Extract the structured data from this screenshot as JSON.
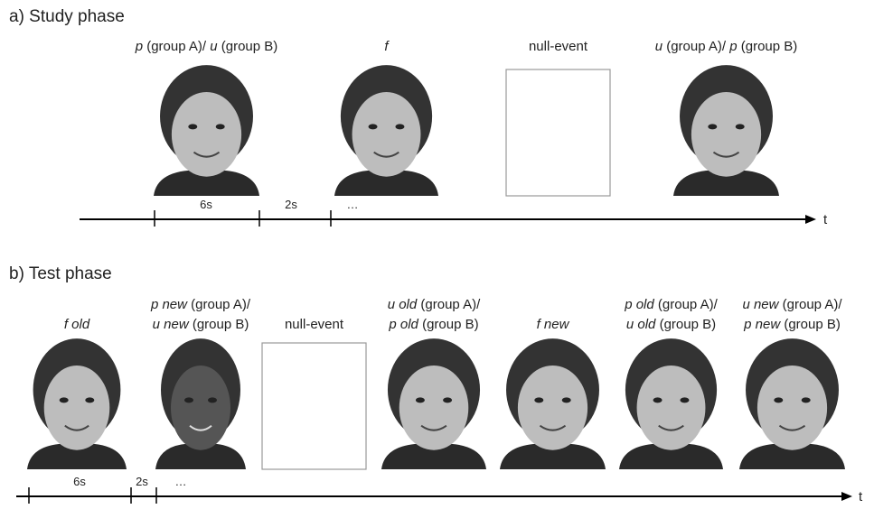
{
  "study": {
    "title": "a) Study phase",
    "items": [
      {
        "lines": [
          [
            {
              "text": "p",
              "italic": true
            },
            {
              "text": " (group A)/ "
            },
            {
              "text": "u",
              "italic": true
            },
            {
              "text": " (group B)"
            }
          ]
        ]
      },
      {
        "lines": [
          [
            {
              "text": "f",
              "italic": true
            }
          ]
        ]
      },
      {
        "lines": [
          [
            {
              "text": "null-event"
            }
          ]
        ]
      },
      {
        "lines": [
          [
            {
              "text": "u",
              "italic": true
            },
            {
              "text": " (group A)/ "
            },
            {
              "text": "p",
              "italic": true
            },
            {
              "text": " (group B)"
            }
          ]
        ]
      }
    ],
    "timeline": {
      "durations": [
        "6s",
        "2s",
        "…"
      ],
      "axis": "t"
    }
  },
  "test": {
    "title": "b) Test phase",
    "items": [
      {
        "lines": [
          [
            {
              "text": "f old",
              "italic": true
            }
          ]
        ]
      },
      {
        "lines": [
          [
            {
              "text": "p new",
              "italic": true
            },
            {
              "text": " (group A)/"
            }
          ],
          [
            {
              "text": "u new",
              "italic": true
            },
            {
              "text": " (group B)"
            }
          ]
        ]
      },
      {
        "lines": [
          [
            {
              "text": "null-event"
            }
          ]
        ]
      },
      {
        "lines": [
          [
            {
              "text": "u old",
              "italic": true
            },
            {
              "text": " (group A)/"
            }
          ],
          [
            {
              "text": "p old",
              "italic": true
            },
            {
              "text": " (group B)"
            }
          ]
        ]
      },
      {
        "lines": [
          [
            {
              "text": "f new",
              "italic": true
            }
          ]
        ]
      },
      {
        "lines": [
          [
            {
              "text": "p old",
              "italic": true
            },
            {
              "text": " (group A)/"
            }
          ],
          [
            {
              "text": "u old",
              "italic": true
            },
            {
              "text": " (group B)"
            }
          ]
        ]
      },
      {
        "lines": [
          [
            {
              "text": "u new",
              "italic": true
            },
            {
              "text": " (group A)/"
            }
          ],
          [
            {
              "text": "p new",
              "italic": true
            },
            {
              "text": " (group B)"
            }
          ]
        ]
      }
    ],
    "timeline": {
      "durations": [
        "6s",
        "2s",
        "…"
      ],
      "axis": "t"
    }
  }
}
